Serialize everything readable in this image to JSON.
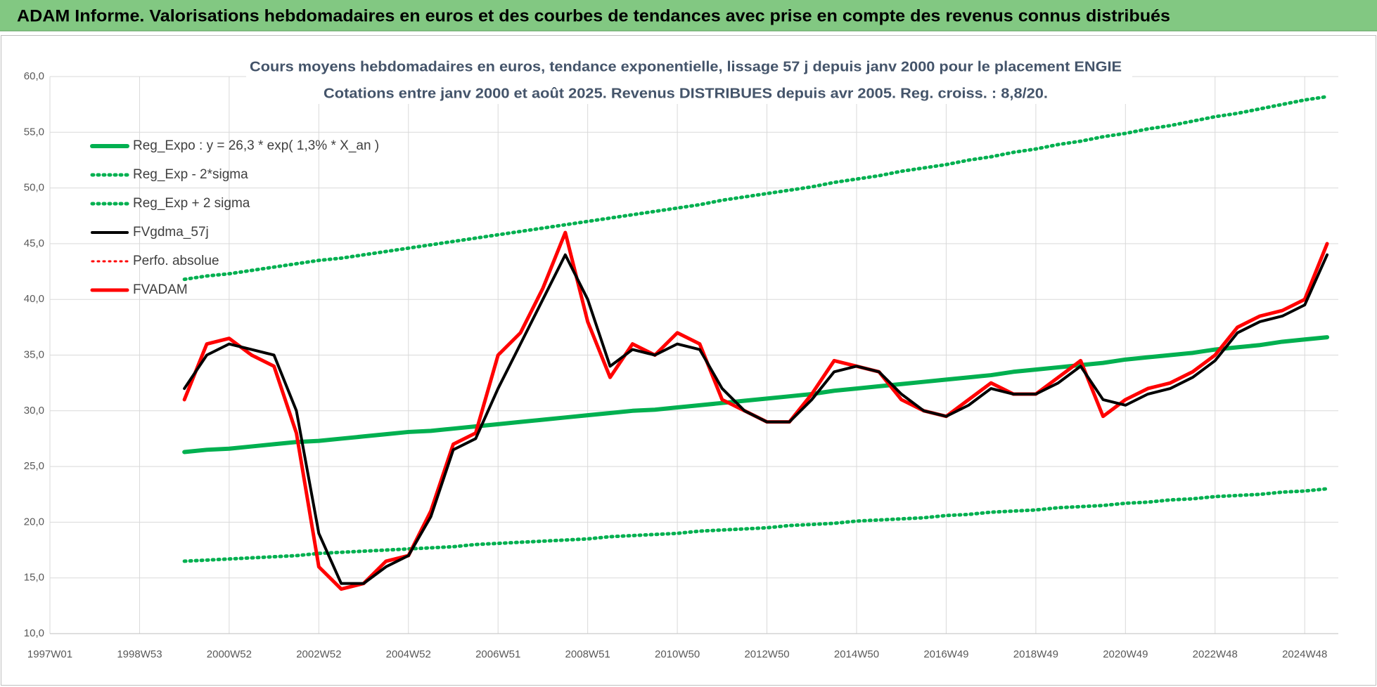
{
  "header": {
    "title": "ADAM Informe. Valorisations hebdomadaires en euros et des courbes de tendances avec prise en compte des revenus connus distribués"
  },
  "chart_data": {
    "type": "line",
    "title": "Cours moyens hebdomadaires en euros, tendance exponentielle, lissage 57 j depuis janv 2000  pour le placement ENGIE",
    "subtitle": "Cotations entre janv 2000 et août 2025. Revenus DISTRIBUES depuis avr 2005. Reg. croiss. : 8,8/20.",
    "categories": [
      "1997W01",
      null,
      null,
      null,
      "1998W53",
      null,
      null,
      null,
      "2000W52",
      null,
      null,
      null,
      "2002W52",
      null,
      null,
      null,
      "2004W52",
      null,
      null,
      null,
      "2006W51",
      null,
      null,
      null,
      "2008W51",
      null,
      null,
      null,
      "2010W50",
      null,
      null,
      null,
      "2012W50",
      null,
      null,
      null,
      "2014W50",
      null,
      null,
      null,
      "2016W49",
      null,
      null,
      null,
      "2018W49",
      null,
      null,
      null,
      "2020W49",
      null,
      null,
      null,
      "2022W48",
      null,
      null,
      null,
      "2024W48",
      null
    ],
    "ylim": [
      10,
      60
    ],
    "yticks": [
      {
        "value": 10,
        "label": "10,0"
      },
      {
        "value": 15,
        "label": "15,0"
      },
      {
        "value": 20,
        "label": "20,0"
      },
      {
        "value": 25,
        "label": "25,0"
      },
      {
        "value": 30,
        "label": "30,0"
      },
      {
        "value": 35,
        "label": "35,0"
      },
      {
        "value": 40,
        "label": "40,0"
      },
      {
        "value": 45,
        "label": "45,0"
      },
      {
        "value": 50,
        "label": "50,0"
      },
      {
        "value": 55,
        "label": "55,0"
      },
      {
        "value": 60,
        "label": "60,0"
      }
    ],
    "grid": true,
    "legend": "top-left",
    "series": [
      {
        "name": "Reg_Expo : y = 26,3 * exp( 1,3% *  X_an )",
        "color": "#00b050",
        "dash": "solid",
        "values": [
          null,
          null,
          null,
          null,
          null,
          null,
          26.3,
          26.5,
          26.6,
          26.8,
          27.0,
          27.2,
          27.3,
          27.5,
          27.7,
          27.9,
          28.1,
          28.2,
          28.4,
          28.6,
          28.8,
          29.0,
          29.2,
          29.4,
          29.6,
          29.8,
          30.0,
          30.1,
          30.3,
          30.5,
          30.7,
          30.9,
          31.1,
          31.3,
          31.5,
          31.8,
          32.0,
          32.2,
          32.4,
          32.6,
          32.8,
          33.0,
          33.2,
          33.5,
          33.7,
          33.9,
          34.1,
          34.3,
          34.6,
          34.8,
          35.0,
          35.2,
          35.5,
          35.7,
          35.9,
          36.2,
          36.4,
          36.6
        ]
      },
      {
        "name": "Reg_Exp - 2*sigma",
        "color": "#00b050",
        "dash": "dotted",
        "values": [
          null,
          null,
          null,
          null,
          null,
          null,
          16.5,
          16.6,
          16.7,
          16.8,
          16.9,
          17.0,
          17.2,
          17.3,
          17.4,
          17.5,
          17.6,
          17.7,
          17.8,
          18.0,
          18.1,
          18.2,
          18.3,
          18.4,
          18.5,
          18.7,
          18.8,
          18.9,
          19.0,
          19.2,
          19.3,
          19.4,
          19.5,
          19.7,
          19.8,
          19.9,
          20.1,
          20.2,
          20.3,
          20.4,
          20.6,
          20.7,
          20.9,
          21.0,
          21.1,
          21.3,
          21.4,
          21.5,
          21.7,
          21.8,
          22.0,
          22.1,
          22.3,
          22.4,
          22.5,
          22.7,
          22.8,
          23.0
        ]
      },
      {
        "name": "Reg_Exp + 2 sigma",
        "color": "#00b050",
        "dash": "dotted",
        "values": [
          null,
          null,
          null,
          null,
          null,
          null,
          41.8,
          42.1,
          42.3,
          42.6,
          42.9,
          43.2,
          43.5,
          43.7,
          44.0,
          44.3,
          44.6,
          44.9,
          45.2,
          45.5,
          45.8,
          46.1,
          46.4,
          46.7,
          47.0,
          47.3,
          47.6,
          47.9,
          48.2,
          48.5,
          48.9,
          49.2,
          49.5,
          49.8,
          50.1,
          50.5,
          50.8,
          51.1,
          51.5,
          51.8,
          52.1,
          52.5,
          52.8,
          53.2,
          53.5,
          53.9,
          54.2,
          54.6,
          54.9,
          55.3,
          55.6,
          56.0,
          56.4,
          56.7,
          57.1,
          57.5,
          57.9,
          58.2
        ]
      },
      {
        "name": "FVgdma_57j",
        "color": "#000000",
        "dash": "solid",
        "values": [
          null,
          null,
          null,
          null,
          null,
          null,
          32,
          35,
          36,
          35.5,
          35,
          30,
          19,
          14.5,
          14.5,
          16,
          17,
          20.5,
          26.5,
          27.5,
          32,
          36,
          40,
          44,
          40,
          34,
          35.5,
          35,
          36,
          35.5,
          32,
          30,
          29,
          29,
          31,
          33.5,
          34,
          33.5,
          31.5,
          30,
          29.5,
          30.5,
          32,
          31.5,
          31.5,
          32.5,
          34,
          31,
          30.5,
          31.5,
          32,
          33,
          34.5,
          37,
          38,
          38.5,
          39.5,
          44
        ]
      },
      {
        "name": "Perfo. absolue",
        "color": "#ff0000",
        "dash": "dotted",
        "values": [
          null,
          null,
          null,
          null,
          null,
          null,
          null,
          null,
          null,
          null,
          null,
          null,
          null,
          null,
          null,
          null,
          null,
          null,
          null,
          null,
          null,
          null,
          null,
          null,
          null,
          null,
          null,
          null,
          null,
          null,
          null,
          null,
          null,
          null,
          null,
          null,
          null,
          null,
          null,
          null,
          null,
          null,
          null,
          null,
          null,
          null,
          null,
          null,
          null,
          null,
          null,
          null,
          null,
          null,
          null,
          null,
          null,
          null
        ]
      },
      {
        "name": "FVADAM",
        "color": "#ff0000",
        "dash": "solid",
        "values": [
          null,
          null,
          null,
          null,
          null,
          null,
          31,
          36,
          36.5,
          35,
          34,
          28,
          16,
          14,
          14.5,
          16.5,
          17,
          21,
          27,
          28,
          35,
          37,
          41,
          46,
          38,
          33,
          36,
          35,
          37,
          36,
          31,
          30,
          29,
          29,
          31.5,
          34.5,
          34,
          33.5,
          31,
          30,
          29.5,
          31,
          32.5,
          31.5,
          31.5,
          33,
          34.5,
          29.5,
          31,
          32,
          32.5,
          33.5,
          35,
          37.5,
          38.5,
          39,
          40,
          45
        ]
      }
    ]
  }
}
